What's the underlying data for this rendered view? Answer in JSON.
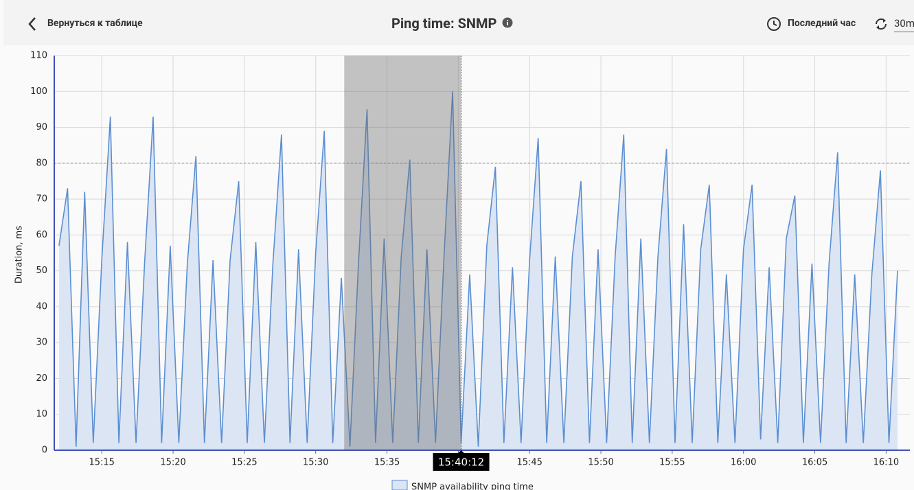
{
  "header": {
    "back": "Вернуться к таблице",
    "title": "Ping time: SNMP",
    "period": "Последний час",
    "refresh": "30m"
  },
  "chart_data": {
    "type": "area",
    "y_label": "Duration, ms",
    "x": [
      "15:12:00",
      "15:12:36",
      "15:13:12",
      "15:13:48",
      "15:14:24",
      "15:15:00",
      "15:15:36",
      "15:16:12",
      "15:16:48",
      "15:17:24",
      "15:18:00",
      "15:18:36",
      "15:19:12",
      "15:19:48",
      "15:20:24",
      "15:21:00",
      "15:21:36",
      "15:22:12",
      "15:22:48",
      "15:23:24",
      "15:24:00",
      "15:24:36",
      "15:25:12",
      "15:25:48",
      "15:26:24",
      "15:27:00",
      "15:27:36",
      "15:28:12",
      "15:28:48",
      "15:29:24",
      "15:30:00",
      "15:30:36",
      "15:31:12",
      "15:31:48",
      "15:32:24",
      "15:33:00",
      "15:33:36",
      "15:34:12",
      "15:34:48",
      "15:35:24",
      "15:36:00",
      "15:36:36",
      "15:37:12",
      "15:37:48",
      "15:38:24",
      "15:39:00",
      "15:39:36",
      "15:40:12",
      "15:40:48",
      "15:41:24",
      "15:42:00",
      "15:42:36",
      "15:43:12",
      "15:43:48",
      "15:44:24",
      "15:45:00",
      "15:45:36",
      "15:46:12",
      "15:46:48",
      "15:47:24",
      "15:48:00",
      "15:48:36",
      "15:49:12",
      "15:49:48",
      "15:50:24",
      "15:51:00",
      "15:51:36",
      "15:52:12",
      "15:52:48",
      "15:53:24",
      "15:54:00",
      "15:54:36",
      "15:55:12",
      "15:55:48",
      "15:56:24",
      "15:57:00",
      "15:57:36",
      "15:58:12",
      "15:58:48",
      "15:59:24",
      "16:00:00",
      "16:00:36",
      "16:01:12",
      "16:01:48",
      "16:02:24",
      "16:03:00",
      "16:03:36",
      "16:04:12",
      "16:04:48",
      "16:05:24",
      "16:06:00",
      "16:06:36",
      "16:07:12",
      "16:07:48",
      "16:08:24",
      "16:09:00",
      "16:09:36",
      "16:10:12",
      "16:10:48"
    ],
    "series": [
      {
        "name": "SNMP availability ping time",
        "color": "#5b8fd0",
        "fill": "#dbe5f4",
        "values": [
          57,
          73,
          1,
          72,
          2,
          53,
          93,
          2,
          58,
          2,
          52,
          93,
          2,
          57,
          2,
          52,
          82,
          2,
          53,
          2,
          53,
          75,
          2,
          58,
          2,
          52,
          88,
          2,
          56,
          2,
          55,
          89,
          2,
          48,
          1,
          52,
          95,
          2,
          59,
          2,
          54,
          81,
          2,
          56,
          2,
          54,
          100,
          2,
          49,
          1,
          57,
          79,
          2,
          51,
          2,
          53,
          87,
          2,
          54,
          2,
          54,
          75,
          2,
          56,
          2,
          54,
          88,
          2,
          59,
          2,
          54,
          84,
          2,
          63,
          2,
          56,
          74,
          2,
          49,
          2,
          56,
          74,
          3,
          51,
          2,
          59,
          71,
          2,
          52,
          2,
          52,
          83,
          2,
          49,
          2,
          49,
          78,
          2,
          50
        ]
      }
    ],
    "xlim": [
      "15:11:40",
      "16:11:40"
    ],
    "xticks": [
      "15:15",
      "15:20",
      "15:25",
      "15:30",
      "15:35",
      "15:40",
      "15:45",
      "15:50",
      "15:55",
      "16:00",
      "16:05",
      "16:10"
    ],
    "ylim": [
      0,
      110
    ],
    "yticks": [
      0,
      10,
      20,
      30,
      40,
      50,
      60,
      70,
      80,
      90,
      100,
      110
    ],
    "grid": true,
    "threshold": 80,
    "selection": [
      "15:32:00",
      "15:40:12"
    ],
    "cursor_label": "15:40:12"
  }
}
